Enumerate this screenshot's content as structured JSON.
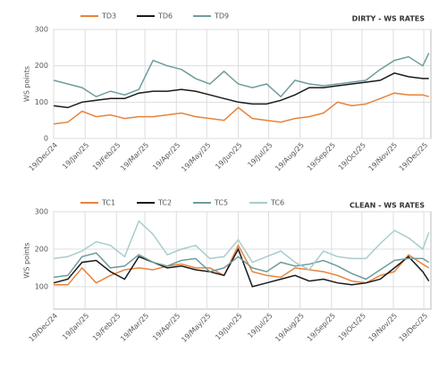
{
  "chart_data": [
    {
      "type": "line",
      "title": "DIRTY - WS RATES",
      "y_label": "WS points",
      "x": [
        "2024-12-19",
        "2025-01-02",
        "2025-01-16",
        "2025-01-30",
        "2025-02-13",
        "2025-02-27",
        "2025-03-13",
        "2025-03-27",
        "2025-04-10",
        "2025-04-24",
        "2025-05-08",
        "2025-05-22",
        "2025-06-05",
        "2025-06-19",
        "2025-07-03",
        "2025-07-17",
        "2025-07-31",
        "2025-08-14",
        "2025-08-28",
        "2025-09-11",
        "2025-09-25",
        "2025-10-09",
        "2025-10-23",
        "2025-11-06",
        "2025-11-20",
        "2025-12-04",
        "2025-12-18",
        "2025-12-24"
      ],
      "series": [
        {
          "name": "TD3",
          "color": "#e8833a",
          "values": [
            40,
            45,
            75,
            60,
            65,
            55,
            60,
            60,
            65,
            70,
            60,
            55,
            50,
            85,
            55,
            50,
            45,
            55,
            60,
            70,
            100,
            90,
            95,
            110,
            125,
            120,
            120,
            115
          ]
        },
        {
          "name": "TD6",
          "color": "#1a1a1a",
          "values": [
            90,
            85,
            100,
            105,
            110,
            110,
            125,
            130,
            130,
            135,
            130,
            120,
            110,
            100,
            95,
            95,
            105,
            120,
            140,
            140,
            145,
            150,
            155,
            160,
            180,
            170,
            165,
            165
          ]
        },
        {
          "name": "TD9",
          "color": "#6e9c9c",
          "values": [
            160,
            150,
            140,
            115,
            130,
            120,
            135,
            215,
            200,
            190,
            165,
            150,
            185,
            150,
            140,
            150,
            115,
            160,
            150,
            145,
            150,
            155,
            160,
            190,
            215,
            225,
            200,
            235
          ]
        }
      ],
      "xlim": [
        "2024-12-19",
        "2025-12-26"
      ],
      "xticks": [
        {
          "value": "2024-12-19",
          "label": "19/Dec/24"
        },
        {
          "value": "2025-01-19",
          "label": "19/Jan/25"
        },
        {
          "value": "2025-02-19",
          "label": "19/Feb/25"
        },
        {
          "value": "2025-03-19",
          "label": "19/Mar/25"
        },
        {
          "value": "2025-04-19",
          "label": "19/Apr/25"
        },
        {
          "value": "2025-05-19",
          "label": "19/May/25"
        },
        {
          "value": "2025-06-19",
          "label": "19/Jun/25"
        },
        {
          "value": "2025-07-19",
          "label": "19/Jul/25"
        },
        {
          "value": "2025-08-19",
          "label": "19/Aug/25"
        },
        {
          "value": "2025-09-19",
          "label": "19/Sep/25"
        },
        {
          "value": "2025-10-19",
          "label": "19/Oct/25"
        },
        {
          "value": "2025-11-19",
          "label": "19/Nov/25"
        },
        {
          "value": "2025-12-19",
          "label": "19/Dec/25"
        }
      ],
      "ylim": [
        0,
        300
      ],
      "yticks": [
        0,
        100,
        200,
        300
      ],
      "grid": true
    },
    {
      "type": "line",
      "title": "CLEAN - WS RATES",
      "y_label": "WS points",
      "x": [
        "2024-12-19",
        "2025-01-02",
        "2025-01-16",
        "2025-01-30",
        "2025-02-13",
        "2025-02-27",
        "2025-03-13",
        "2025-03-27",
        "2025-04-10",
        "2025-04-24",
        "2025-05-08",
        "2025-05-22",
        "2025-06-05",
        "2025-06-19",
        "2025-07-03",
        "2025-07-17",
        "2025-07-31",
        "2025-08-14",
        "2025-08-28",
        "2025-09-11",
        "2025-09-25",
        "2025-10-09",
        "2025-10-23",
        "2025-11-06",
        "2025-11-20",
        "2025-12-04",
        "2025-12-18",
        "2025-12-24"
      ],
      "series": [
        {
          "name": "TC1",
          "color": "#e8833a",
          "values": [
            105,
            105,
            150,
            110,
            130,
            145,
            150,
            145,
            155,
            160,
            150,
            150,
            130,
            210,
            140,
            130,
            125,
            150,
            145,
            140,
            130,
            115,
            110,
            130,
            140,
            185,
            160,
            150
          ]
        },
        {
          "name": "TC2",
          "color": "#1a1a1a",
          "values": [
            110,
            120,
            165,
            170,
            140,
            120,
            180,
            165,
            150,
            155,
            145,
            140,
            130,
            200,
            100,
            110,
            120,
            130,
            115,
            120,
            110,
            105,
            110,
            120,
            150,
            180,
            140,
            115
          ]
        },
        {
          "name": "TC5",
          "color": "#6e9c9c",
          "values": [
            125,
            130,
            180,
            190,
            150,
            155,
            185,
            165,
            155,
            170,
            175,
            140,
            150,
            180,
            150,
            140,
            165,
            155,
            160,
            170,
            155,
            135,
            120,
            145,
            170,
            175,
            175,
            165
          ]
        },
        {
          "name": "TC6",
          "color": "#a9cccc",
          "values": [
            175,
            180,
            195,
            220,
            210,
            180,
            275,
            240,
            185,
            200,
            210,
            175,
            180,
            225,
            165,
            180,
            195,
            165,
            145,
            195,
            180,
            175,
            175,
            215,
            250,
            230,
            200,
            245
          ]
        }
      ],
      "xlim": [
        "2024-12-19",
        "2025-12-26"
      ],
      "xticks": [
        {
          "value": "2024-12-19",
          "label": "19/Dec/24"
        },
        {
          "value": "2025-01-19",
          "label": "19/Jan/25"
        },
        {
          "value": "2025-02-19",
          "label": "19/Feb/25"
        },
        {
          "value": "2025-03-19",
          "label": "19/Mar/25"
        },
        {
          "value": "2025-04-19",
          "label": "19/Apr/25"
        },
        {
          "value": "2025-05-19",
          "label": "19/May/25"
        },
        {
          "value": "2025-06-19",
          "label": "19/Jun/25"
        },
        {
          "value": "2025-07-19",
          "label": "19/Jul/25"
        },
        {
          "value": "2025-08-19",
          "label": "19/Aug/25"
        },
        {
          "value": "2025-09-19",
          "label": "19/Sep/25"
        },
        {
          "value": "2025-10-19",
          "label": "19/Oct/25"
        },
        {
          "value": "2025-11-19",
          "label": "19/Nov/25"
        },
        {
          "value": "2025-12-19",
          "label": "19/Dec/25"
        }
      ],
      "ylim": [
        40,
        300
      ],
      "yticks": [
        100,
        200,
        300
      ],
      "grid": true
    }
  ]
}
